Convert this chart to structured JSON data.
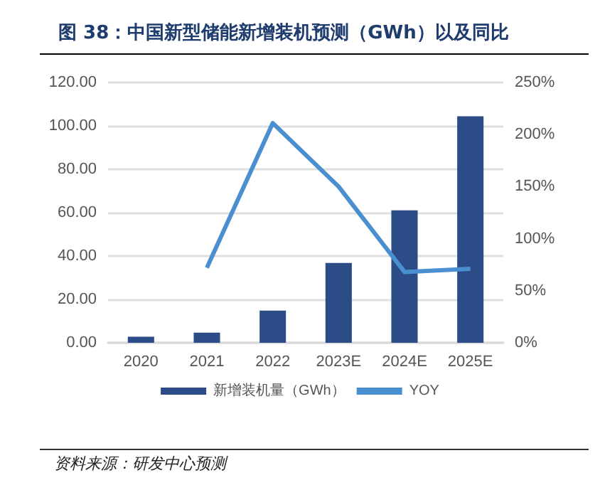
{
  "chart_data": {
    "type": "bar",
    "title": "图 38：中国新型储能新增装机预测（GWh）以及同比",
    "categories": [
      "2020",
      "2021",
      "2022",
      "2023E",
      "2024E",
      "2025E"
    ],
    "series": [
      {
        "name": "新增装机量（GWh）",
        "color": "#2b4c87",
        "values": [
          2.8,
          4.7,
          14.8,
          36.8,
          61.1,
          104.4
        ]
      },
      {
        "name": "YOY",
        "type": "line",
        "axis": "y2",
        "color": "#4a90d0",
        "values": [
          null,
          72,
          211,
          150,
          68,
          71
        ]
      }
    ],
    "ylim": [
      0,
      120
    ],
    "yticks": [
      {
        "value": 0,
        "label": "0.00"
      },
      {
        "value": 20,
        "label": "20.00"
      },
      {
        "value": 40,
        "label": "40.00"
      },
      {
        "value": 60,
        "label": "60.00"
      },
      {
        "value": 80,
        "label": "80.00"
      },
      {
        "value": 100,
        "label": "100.00"
      },
      {
        "value": 120,
        "label": "120.00"
      }
    ],
    "y2lim": [
      0,
      250
    ],
    "y2ticks": [
      {
        "value": 0,
        "label": "0%"
      },
      {
        "value": 50,
        "label": "50%"
      },
      {
        "value": 100,
        "label": "100%"
      },
      {
        "value": 150,
        "label": "150%"
      },
      {
        "value": 200,
        "label": "200%"
      },
      {
        "value": 250,
        "label": "250%"
      }
    ],
    "grid": "y",
    "legend": "bottom",
    "marker": "none",
    "line_style": "solid",
    "annotations": [
      "资料来源：研发中心预测"
    ]
  }
}
